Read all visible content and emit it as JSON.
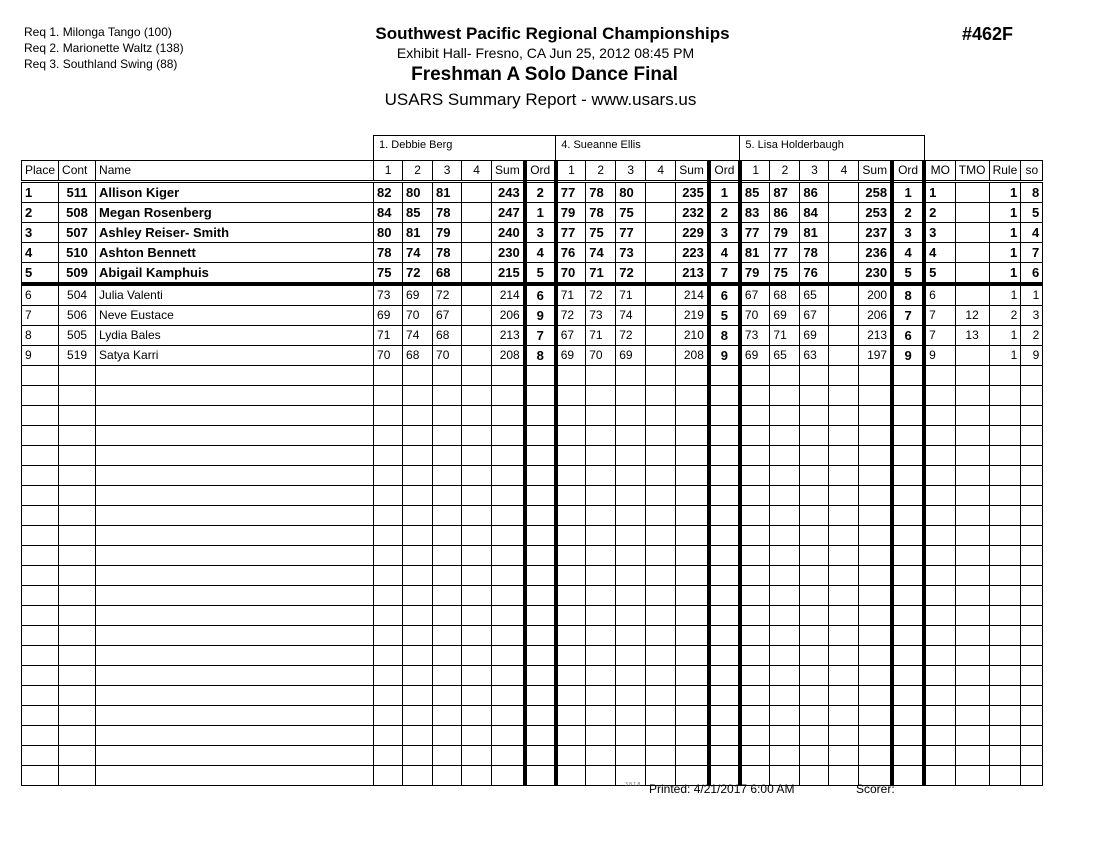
{
  "requirements": [
    "Req  1.  Milonga Tango (100)",
    "Req  2.  Marionette Waltz (138)",
    "Req  3.  Southland Swing (88)"
  ],
  "header": {
    "championship": "Southwest Pacific Regional Championships",
    "venue": "Exhibit Hall-  Fresno, CA  Jun 25, 2012  08:45 PM",
    "event": "Freshman A Solo Dance Final",
    "report": "USARS Summary Report - www.usars.us",
    "event_number": "#462F"
  },
  "judges": [
    "1.  Debbie Berg",
    "4.  Sueanne Ellis",
    "5.  Lisa Holderbaugh"
  ],
  "columns": {
    "place": "Place",
    "cont": "Cont",
    "name": "Name",
    "judge_cols": [
      "1",
      "2",
      "3",
      "4",
      "Sum",
      "Ord"
    ],
    "tail": [
      "MO",
      "TMO",
      "Rule",
      "so"
    ]
  },
  "rows": [
    {
      "place": "1",
      "cont": "511",
      "name": "Allison Kiger",
      "bold": true,
      "j": [
        [
          "82",
          "80",
          "81",
          "",
          "243",
          "2"
        ],
        [
          "77",
          "78",
          "80",
          "",
          "235",
          "1"
        ],
        [
          "85",
          "87",
          "86",
          "",
          "258",
          "1"
        ]
      ],
      "mo": "1",
      "tmo": "",
      "rule": "1",
      "so": "8"
    },
    {
      "place": "2",
      "cont": "508",
      "name": "Megan Rosenberg",
      "bold": true,
      "j": [
        [
          "84",
          "85",
          "78",
          "",
          "247",
          "1"
        ],
        [
          "79",
          "78",
          "75",
          "",
          "232",
          "2"
        ],
        [
          "83",
          "86",
          "84",
          "",
          "253",
          "2"
        ]
      ],
      "mo": "2",
      "tmo": "",
      "rule": "1",
      "so": "5"
    },
    {
      "place": "3",
      "cont": "507",
      "name": "Ashley Reiser- Smith",
      "bold": true,
      "j": [
        [
          "80",
          "81",
          "79",
          "",
          "240",
          "3"
        ],
        [
          "77",
          "75",
          "77",
          "",
          "229",
          "3"
        ],
        [
          "77",
          "79",
          "81",
          "",
          "237",
          "3"
        ]
      ],
      "mo": "3",
      "tmo": "",
      "rule": "1",
      "so": "4"
    },
    {
      "place": "4",
      "cont": "510",
      "name": "Ashton Bennett",
      "bold": true,
      "j": [
        [
          "78",
          "74",
          "78",
          "",
          "230",
          "4"
        ],
        [
          "76",
          "74",
          "73",
          "",
          "223",
          "4"
        ],
        [
          "81",
          "77",
          "78",
          "",
          "236",
          "4"
        ]
      ],
      "mo": "4",
      "tmo": "",
      "rule": "1",
      "so": "7"
    },
    {
      "place": "5",
      "cont": "509",
      "name": "Abigail Kamphuis",
      "bold": true,
      "j": [
        [
          "75",
          "72",
          "68",
          "",
          "215",
          "5"
        ],
        [
          "70",
          "71",
          "72",
          "",
          "213",
          "7"
        ],
        [
          "79",
          "75",
          "76",
          "",
          "230",
          "5"
        ]
      ],
      "mo": "5",
      "tmo": "",
      "rule": "1",
      "so": "6"
    },
    {
      "place": "6",
      "cont": "504",
      "name": "Julia Valenti",
      "bold": false,
      "j": [
        [
          "73",
          "69",
          "72",
          "",
          "214",
          "6"
        ],
        [
          "71",
          "72",
          "71",
          "",
          "214",
          "6"
        ],
        [
          "67",
          "68",
          "65",
          "",
          "200",
          "8"
        ]
      ],
      "mo": "6",
      "tmo": "",
      "rule": "1",
      "so": "1"
    },
    {
      "place": "7",
      "cont": "506",
      "name": "Neve Eustace",
      "bold": false,
      "j": [
        [
          "69",
          "70",
          "67",
          "",
          "206",
          "9"
        ],
        [
          "72",
          "73",
          "74",
          "",
          "219",
          "5"
        ],
        [
          "70",
          "69",
          "67",
          "",
          "206",
          "7"
        ]
      ],
      "mo": "7",
      "tmo": "12",
      "rule": "2",
      "so": "3"
    },
    {
      "place": "8",
      "cont": "505",
      "name": "Lydia Bales",
      "bold": false,
      "j": [
        [
          "71",
          "74",
          "68",
          "",
          "213",
          "7"
        ],
        [
          "67",
          "71",
          "72",
          "",
          "210",
          "8"
        ],
        [
          "73",
          "71",
          "69",
          "",
          "213",
          "6"
        ]
      ],
      "mo": "7",
      "tmo": "13",
      "rule": "1",
      "so": "2"
    },
    {
      "place": "9",
      "cont": "519",
      "name": "Satya Karri",
      "bold": false,
      "j": [
        [
          "70",
          "68",
          "70",
          "",
          "208",
          "8"
        ],
        [
          "69",
          "70",
          "69",
          "",
          "208",
          "9"
        ],
        [
          "69",
          "65",
          "63",
          "",
          "197",
          "9"
        ]
      ],
      "mo": "9",
      "tmo": "",
      "rule": "1",
      "so": "9"
    }
  ],
  "footer": {
    "version": "3.8.1.8",
    "printed": "Printed:  4/21/2017  6:00 AM",
    "scorer": "Scorer:"
  }
}
